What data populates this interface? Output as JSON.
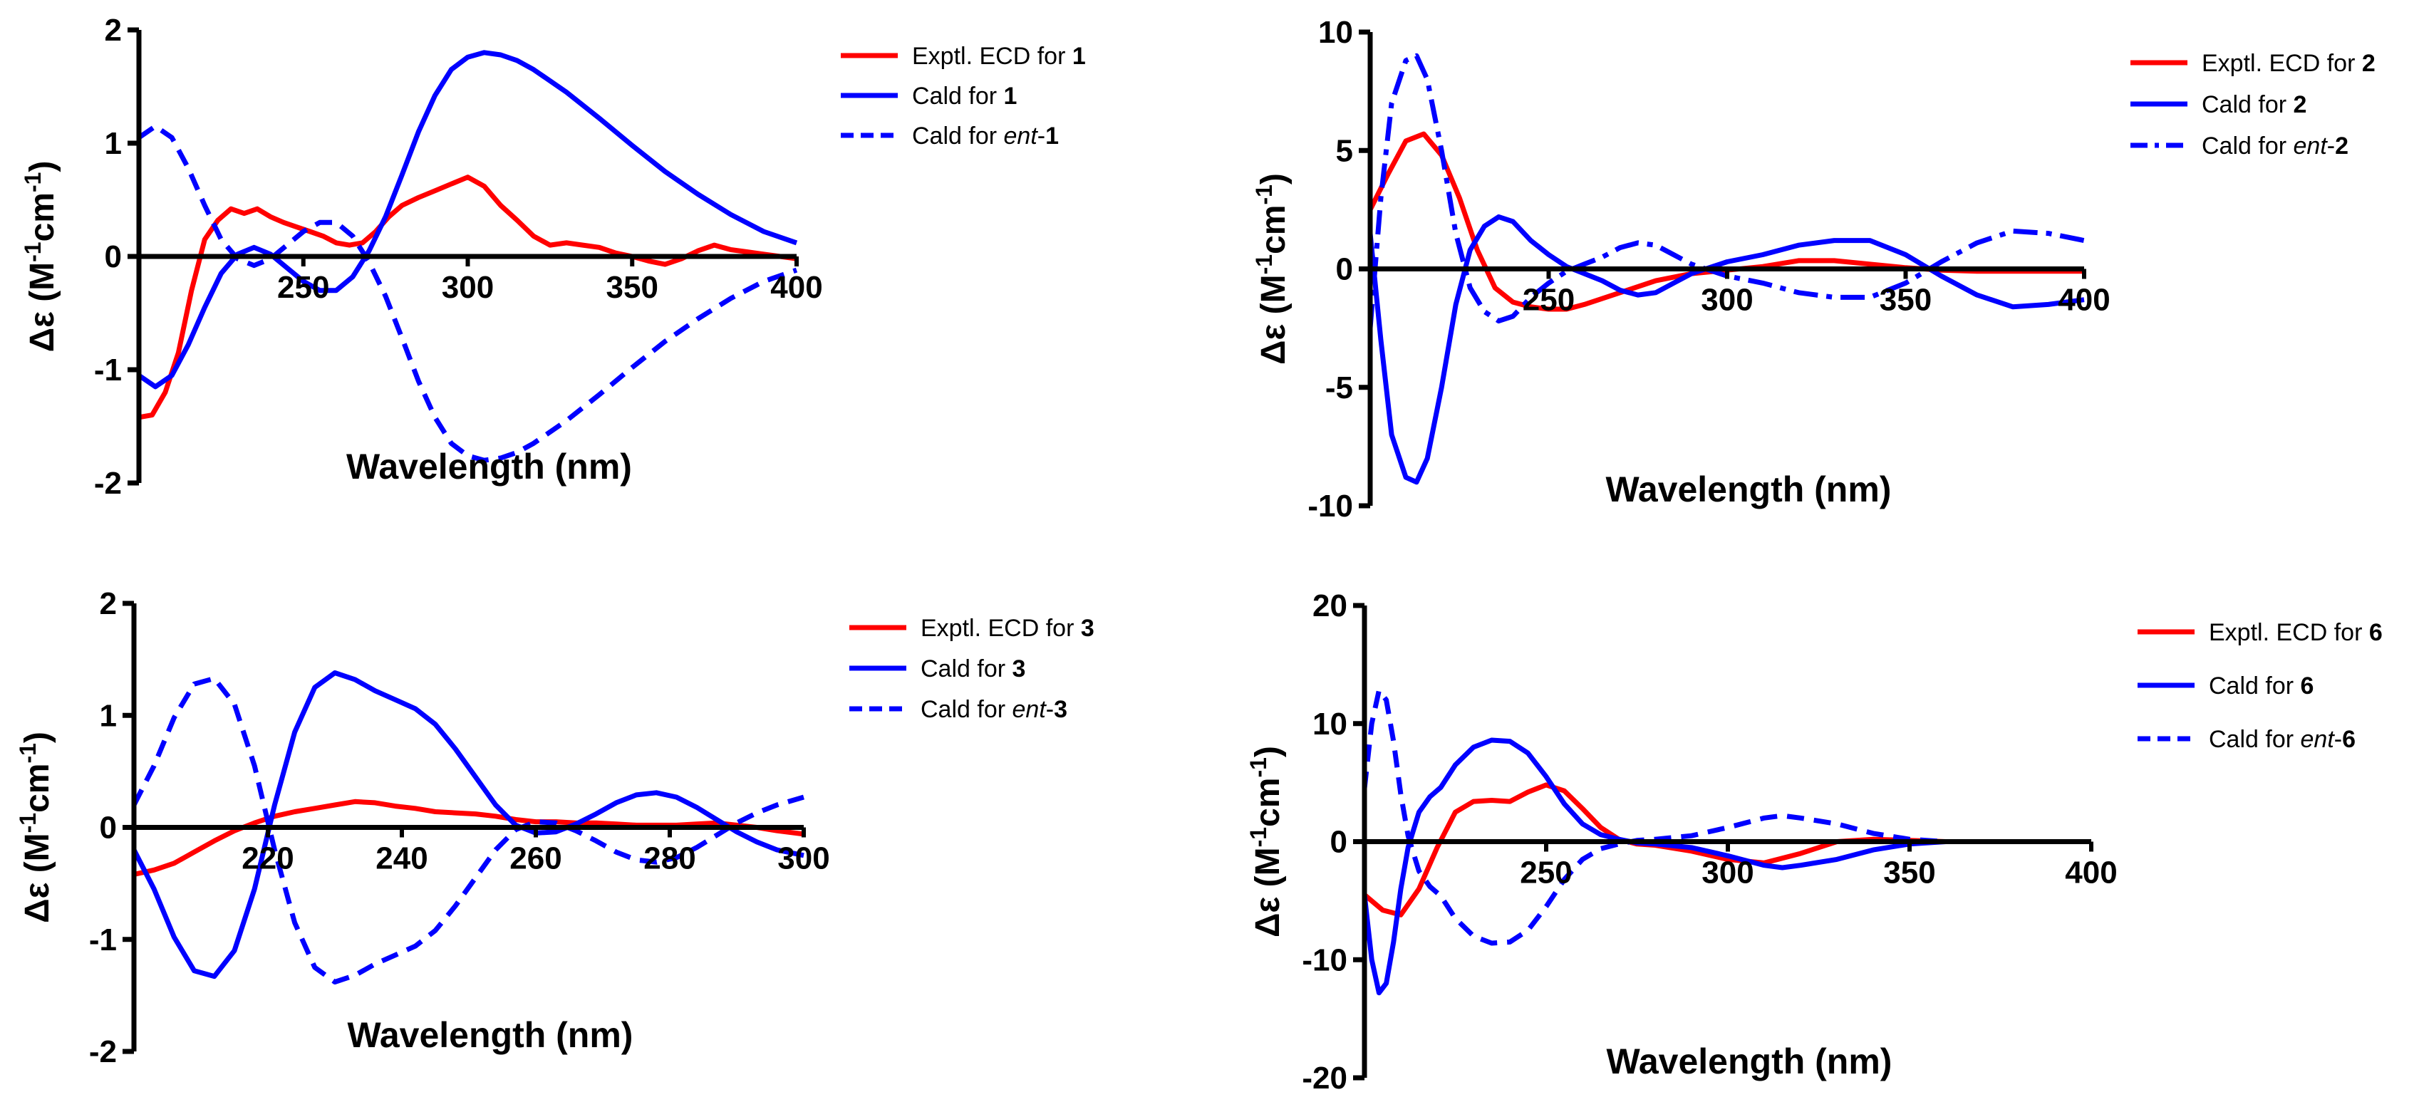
{
  "colors": {
    "experimental": "#ff0000",
    "calculated": "#0000ff",
    "axis": "#000000"
  },
  "chart_data": [
    {
      "type": "line",
      "xlabel": "Wavelength (nm)",
      "ylabel": "Δε (M-1cm-1)",
      "xlim": [
        200,
        400
      ],
      "ylim": [
        -2,
        2
      ],
      "xticks": [
        "250",
        "300",
        "350",
        "400"
      ],
      "yticks": [
        "2",
        "1",
        "0",
        "-1",
        "-2"
      ],
      "series": [
        {
          "name": "Exptl. ECD for 1",
          "legend_prefix": "Exptl. ECD for ",
          "compound": "1",
          "style": "solid",
          "color": "#ff0000",
          "x": [
            200,
            204,
            208,
            212,
            216,
            220,
            224,
            228,
            232,
            236,
            240,
            244,
            248,
            252,
            256,
            260,
            264,
            268,
            272,
            276,
            280,
            285,
            290,
            295,
            300,
            305,
            310,
            315,
            320,
            325,
            330,
            335,
            340,
            345,
            350,
            355,
            360,
            365,
            370,
            375,
            380,
            385,
            390,
            395,
            400
          ],
          "values": [
            -1.42,
            -1.4,
            -1.2,
            -0.85,
            -0.3,
            0.15,
            0.32,
            0.42,
            0.38,
            0.42,
            0.35,
            0.3,
            0.26,
            0.22,
            0.18,
            0.12,
            0.1,
            0.12,
            0.22,
            0.35,
            0.45,
            0.52,
            0.58,
            0.64,
            0.7,
            0.62,
            0.45,
            0.32,
            0.18,
            0.1,
            0.12,
            0.1,
            0.08,
            0.03,
            0.0,
            -0.04,
            -0.07,
            -0.02,
            0.05,
            0.1,
            0.06,
            0.04,
            0.02,
            0.0,
            -0.02
          ]
        },
        {
          "name": "Cald for 1",
          "legend_prefix": "Cald for ",
          "compound": "1",
          "style": "solid",
          "color": "#0000ff",
          "x": [
            200,
            205,
            210,
            215,
            220,
            225,
            230,
            235,
            240,
            245,
            250,
            255,
            260,
            265,
            270,
            275,
            280,
            285,
            290,
            295,
            300,
            305,
            310,
            315,
            320,
            330,
            340,
            350,
            360,
            370,
            380,
            390,
            400
          ],
          "values": [
            -1.05,
            -1.15,
            -1.05,
            -0.78,
            -0.45,
            -0.15,
            0.02,
            0.08,
            0.02,
            -0.1,
            -0.22,
            -0.3,
            -0.3,
            -0.18,
            0.05,
            0.35,
            0.72,
            1.1,
            1.42,
            1.65,
            1.76,
            1.8,
            1.78,
            1.73,
            1.65,
            1.45,
            1.22,
            0.98,
            0.75,
            0.55,
            0.37,
            0.22,
            0.12
          ]
        },
        {
          "name": "Cald for ent-1",
          "legend_prefix": "Cald for ",
          "legend_italic": "ent",
          "compound": "1",
          "style": "dashed",
          "color": "#0000ff",
          "x": [
            200,
            205,
            210,
            215,
            220,
            225,
            230,
            235,
            240,
            245,
            250,
            255,
            260,
            265,
            270,
            275,
            280,
            285,
            290,
            295,
            300,
            305,
            310,
            315,
            320,
            330,
            340,
            350,
            360,
            370,
            380,
            390,
            400
          ],
          "values": [
            1.05,
            1.15,
            1.05,
            0.78,
            0.45,
            0.15,
            -0.02,
            -0.08,
            -0.02,
            0.1,
            0.22,
            0.3,
            0.3,
            0.18,
            -0.05,
            -0.35,
            -0.72,
            -1.1,
            -1.42,
            -1.65,
            -1.76,
            -1.8,
            -1.78,
            -1.73,
            -1.65,
            -1.45,
            -1.22,
            -0.98,
            -0.75,
            -0.55,
            -0.37,
            -0.22,
            -0.12
          ]
        }
      ]
    },
    {
      "type": "line",
      "xlabel": "Wavelength (nm)",
      "ylabel": "Δε (M-1cm-1)",
      "xlim": [
        200,
        400
      ],
      "ylim": [
        -10,
        10
      ],
      "xticks": [
        "250",
        "300",
        "350",
        "400"
      ],
      "yticks": [
        "10",
        "5",
        "0",
        "-5",
        "-10"
      ],
      "series": [
        {
          "name": "Exptl. ECD for 2",
          "legend_prefix": "Exptl. ECD for ",
          "compound": "2",
          "style": "solid",
          "color": "#ff0000",
          "x": [
            200,
            205,
            210,
            215,
            220,
            225,
            230,
            235,
            240,
            245,
            250,
            255,
            260,
            270,
            280,
            290,
            300,
            310,
            320,
            330,
            340,
            350,
            360,
            370,
            380,
            390,
            400
          ],
          "values": [
            2.5,
            4.0,
            5.4,
            5.7,
            4.8,
            3.0,
            0.8,
            -0.8,
            -1.4,
            -1.6,
            -1.7,
            -1.7,
            -1.5,
            -1.0,
            -0.5,
            -0.2,
            -0.05,
            0.1,
            0.35,
            0.35,
            0.2,
            0.05,
            -0.05,
            -0.1,
            -0.1,
            -0.1,
            -0.1
          ]
        },
        {
          "name": "Cald for 2",
          "legend_prefix": "Cald for ",
          "compound": "2",
          "style": "solid",
          "color": "#0000ff",
          "x": [
            200,
            203,
            206,
            210,
            213,
            216,
            220,
            224,
            228,
            232,
            236,
            240,
            245,
            250,
            255,
            260,
            265,
            270,
            275,
            280,
            285,
            290,
            300,
            310,
            320,
            330,
            340,
            350,
            360,
            370,
            380,
            390,
            400
          ],
          "values": [
            1.5,
            -3.0,
            -7.0,
            -8.8,
            -9.0,
            -8.0,
            -5.0,
            -1.5,
            0.8,
            1.8,
            2.2,
            2.0,
            1.2,
            0.6,
            0.1,
            -0.2,
            -0.5,
            -0.9,
            -1.1,
            -1.0,
            -0.6,
            -0.2,
            0.3,
            0.6,
            1.0,
            1.2,
            1.2,
            0.6,
            -0.3,
            -1.1,
            -1.6,
            -1.5,
            -1.3
          ]
        },
        {
          "name": "Cald for ent-2",
          "legend_prefix": "Cald for ",
          "legend_italic": "ent",
          "compound": "2",
          "style": "dashdot",
          "color": "#0000ff",
          "x": [
            200,
            203,
            206,
            210,
            213,
            216,
            220,
            224,
            228,
            232,
            236,
            240,
            245,
            250,
            255,
            260,
            265,
            270,
            275,
            280,
            285,
            290,
            300,
            310,
            320,
            330,
            340,
            350,
            360,
            370,
            380,
            390,
            400
          ],
          "values": [
            -2.5,
            3.0,
            7.0,
            8.8,
            9.0,
            8.0,
            5.0,
            1.5,
            -0.8,
            -1.8,
            -2.2,
            -2.0,
            -1.2,
            -0.6,
            -0.1,
            0.2,
            0.5,
            0.9,
            1.1,
            1.0,
            0.6,
            0.2,
            -0.3,
            -0.6,
            -1.0,
            -1.2,
            -1.2,
            -0.6,
            0.3,
            1.1,
            1.6,
            1.5,
            1.2
          ]
        }
      ]
    },
    {
      "type": "line",
      "xlabel": "Wavelength (nm)",
      "ylabel": "Δε (M-1cm-1)",
      "xlim": [
        200,
        300
      ],
      "ylim": [
        -2,
        2
      ],
      "xticks": [
        "220",
        "240",
        "260",
        "280",
        "300"
      ],
      "yticks": [
        "2",
        "1",
        "0",
        "-1",
        "-2"
      ],
      "series": [
        {
          "name": "Exptl. ECD for 3",
          "legend_prefix": "Exptl. ECD for ",
          "compound": "3",
          "style": "solid",
          "color": "#ff0000",
          "x": [
            200,
            203,
            206,
            209,
            212,
            215,
            218,
            221,
            224,
            227,
            230,
            233,
            236,
            239,
            242,
            245,
            248,
            251,
            254,
            257,
            260,
            263,
            266,
            269,
            272,
            275,
            278,
            281,
            284,
            287,
            290,
            293,
            296,
            300
          ],
          "values": [
            -0.42,
            -0.38,
            -0.32,
            -0.22,
            -0.12,
            -0.03,
            0.04,
            0.1,
            0.14,
            0.17,
            0.2,
            0.23,
            0.22,
            0.19,
            0.17,
            0.14,
            0.13,
            0.12,
            0.1,
            0.07,
            0.05,
            0.05,
            0.04,
            0.04,
            0.03,
            0.02,
            0.02,
            0.02,
            0.03,
            0.04,
            0.02,
            0.0,
            -0.03,
            -0.06
          ]
        },
        {
          "name": "Cald for 3",
          "legend_prefix": "Cald for ",
          "compound": "3",
          "style": "solid",
          "color": "#0000ff",
          "x": [
            200,
            203,
            206,
            209,
            212,
            215,
            218,
            221,
            224,
            227,
            230,
            233,
            236,
            239,
            242,
            245,
            248,
            251,
            254,
            257,
            260,
            263,
            266,
            269,
            272,
            275,
            278,
            281,
            284,
            287,
            290,
            293,
            296,
            300
          ],
          "values": [
            -0.2,
            -0.55,
            -0.98,
            -1.28,
            -1.33,
            -1.1,
            -0.55,
            0.2,
            0.85,
            1.25,
            1.38,
            1.32,
            1.22,
            1.14,
            1.06,
            0.92,
            0.7,
            0.45,
            0.2,
            0.02,
            -0.05,
            -0.04,
            0.03,
            0.12,
            0.22,
            0.29,
            0.31,
            0.27,
            0.18,
            0.07,
            -0.04,
            -0.13,
            -0.2,
            -0.25
          ]
        },
        {
          "name": "Cald for ent-3",
          "legend_prefix": "Cald for ",
          "legend_italic": "ent",
          "compound": "3",
          "style": "dashed",
          "color": "#0000ff",
          "x": [
            200,
            203,
            206,
            209,
            212,
            215,
            218,
            221,
            224,
            227,
            230,
            233,
            236,
            239,
            242,
            245,
            248,
            251,
            254,
            257,
            260,
            263,
            266,
            269,
            272,
            275,
            278,
            281,
            284,
            287,
            290,
            293,
            296,
            300
          ],
          "values": [
            0.2,
            0.55,
            0.98,
            1.28,
            1.33,
            1.1,
            0.55,
            -0.2,
            -0.85,
            -1.25,
            -1.38,
            -1.32,
            -1.22,
            -1.14,
            -1.06,
            -0.92,
            -0.7,
            -0.45,
            -0.2,
            -0.02,
            0.05,
            0.04,
            -0.03,
            -0.12,
            -0.22,
            -0.29,
            -0.31,
            -0.27,
            -0.18,
            -0.07,
            0.04,
            0.13,
            0.2,
            0.27
          ]
        }
      ]
    },
    {
      "type": "line",
      "xlabel": "Wavelength (nm)",
      "ylabel": "Δε (M-1cm-1)",
      "xlim": [
        200,
        400
      ],
      "ylim": [
        -20,
        20
      ],
      "xticks": [
        "250",
        "300",
        "350",
        "400"
      ],
      "yticks": [
        "20",
        "10",
        "0",
        "-10",
        "-20"
      ],
      "series": [
        {
          "name": "Exptl. ECD for 6",
          "legend_prefix": "Exptl. ECD for ",
          "compound": "6",
          "style": "solid",
          "color": "#ff0000",
          "x": [
            200,
            205,
            210,
            215,
            220,
            225,
            230,
            235,
            240,
            245,
            250,
            255,
            260,
            265,
            270,
            275,
            280,
            290,
            300,
            310,
            320,
            330,
            340,
            350,
            360,
            370,
            380,
            390,
            400
          ],
          "values": [
            -4.5,
            -5.8,
            -6.2,
            -4.0,
            -0.5,
            2.5,
            3.4,
            3.5,
            3.4,
            4.2,
            4.8,
            4.3,
            2.8,
            1.2,
            0.2,
            -0.2,
            -0.3,
            -0.8,
            -1.5,
            -1.8,
            -1.0,
            0.0,
            0.2,
            0.1,
            0.0,
            0.0,
            0.0,
            0.0,
            0.0
          ]
        },
        {
          "name": "Cald for 6",
          "legend_prefix": "Cald for ",
          "compound": "6",
          "style": "solid",
          "color": "#0000ff",
          "x": [
            200,
            202,
            204,
            206,
            208,
            210,
            212,
            215,
            218,
            221,
            225,
            230,
            235,
            240,
            245,
            250,
            255,
            260,
            265,
            270,
            275,
            280,
            290,
            300,
            310,
            315,
            320,
            330,
            340,
            350,
            360,
            370,
            380,
            390,
            400
          ],
          "values": [
            -4.5,
            -10.0,
            -12.8,
            -12.0,
            -8.5,
            -4.0,
            -0.5,
            2.5,
            3.8,
            4.6,
            6.5,
            8.0,
            8.6,
            8.5,
            7.5,
            5.5,
            3.2,
            1.5,
            0.6,
            0.2,
            -0.1,
            -0.2,
            -0.5,
            -1.2,
            -2.0,
            -2.2,
            -2.0,
            -1.5,
            -0.7,
            -0.2,
            0.0,
            0.0,
            0.0,
            0.0,
            0.0
          ]
        },
        {
          "name": "Cald for ent-6",
          "legend_prefix": "Cald for ",
          "legend_italic": "ent",
          "compound": "6",
          "style": "dashed",
          "color": "#0000ff",
          "x": [
            200,
            202,
            204,
            206,
            208,
            210,
            212,
            215,
            218,
            221,
            225,
            230,
            235,
            240,
            245,
            250,
            255,
            260,
            265,
            270,
            275,
            280,
            290,
            300,
            310,
            315,
            320,
            330,
            340,
            350,
            360,
            370,
            380,
            390,
            400
          ],
          "values": [
            4.5,
            10.0,
            12.8,
            12.0,
            8.5,
            4.0,
            0.5,
            -2.5,
            -3.8,
            -4.6,
            -6.5,
            -8.0,
            -8.6,
            -8.5,
            -7.5,
            -5.5,
            -3.2,
            -1.5,
            -0.6,
            -0.2,
            0.1,
            0.2,
            0.5,
            1.2,
            2.0,
            2.2,
            2.0,
            1.5,
            0.7,
            0.2,
            0.0,
            0.0,
            0.0,
            0.0,
            0.0
          ]
        }
      ]
    }
  ]
}
